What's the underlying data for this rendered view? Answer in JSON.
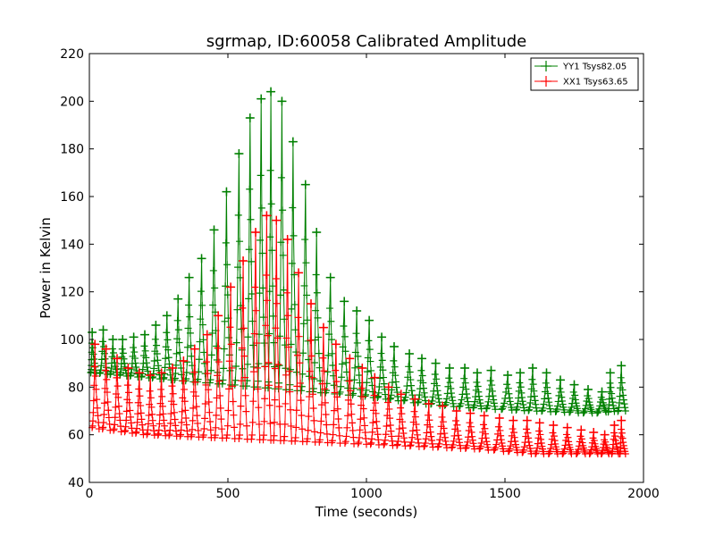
{
  "chart_data": {
    "type": "line",
    "title": "sgrmap, ID:60058 Calibrated Amplitude",
    "xlabel": "Time (seconds)",
    "ylabel": "Power in Kelvin",
    "xlim": [
      0,
      2000
    ],
    "ylim": [
      40,
      220
    ],
    "xticks": [
      "0",
      "500",
      "1000",
      "1500",
      "2000"
    ],
    "yticks": [
      "40",
      "60",
      "80",
      "100",
      "120",
      "140",
      "160",
      "180",
      "200",
      "220"
    ],
    "grid": false,
    "legend_position": "top-right",
    "marker": "+",
    "series": [
      {
        "name": "YY1 Tsys82.05",
        "color": "#008000",
        "peaks": [
          {
            "x": 10,
            "y": 103
          },
          {
            "x": 50,
            "y": 104
          },
          {
            "x": 85,
            "y": 100
          },
          {
            "x": 120,
            "y": 100
          },
          {
            "x": 160,
            "y": 101
          },
          {
            "x": 200,
            "y": 102
          },
          {
            "x": 240,
            "y": 106
          },
          {
            "x": 280,
            "y": 110
          },
          {
            "x": 320,
            "y": 117
          },
          {
            "x": 360,
            "y": 126
          },
          {
            "x": 405,
            "y": 134
          },
          {
            "x": 450,
            "y": 146
          },
          {
            "x": 495,
            "y": 162
          },
          {
            "x": 540,
            "y": 178
          },
          {
            "x": 580,
            "y": 193
          },
          {
            "x": 620,
            "y": 201
          },
          {
            "x": 655,
            "y": 204
          },
          {
            "x": 695,
            "y": 200
          },
          {
            "x": 735,
            "y": 183
          },
          {
            "x": 780,
            "y": 165
          },
          {
            "x": 820,
            "y": 145
          },
          {
            "x": 870,
            "y": 126
          },
          {
            "x": 920,
            "y": 116
          },
          {
            "x": 965,
            "y": 112
          },
          {
            "x": 1010,
            "y": 108
          },
          {
            "x": 1055,
            "y": 101
          },
          {
            "x": 1100,
            "y": 97
          },
          {
            "x": 1155,
            "y": 94
          },
          {
            "x": 1200,
            "y": 92
          },
          {
            "x": 1250,
            "y": 90
          },
          {
            "x": 1300,
            "y": 88
          },
          {
            "x": 1355,
            "y": 88
          },
          {
            "x": 1400,
            "y": 86
          },
          {
            "x": 1450,
            "y": 87
          },
          {
            "x": 1510,
            "y": 85
          },
          {
            "x": 1555,
            "y": 86
          },
          {
            "x": 1600,
            "y": 88
          },
          {
            "x": 1650,
            "y": 86
          },
          {
            "x": 1700,
            "y": 83
          },
          {
            "x": 1750,
            "y": 81
          },
          {
            "x": 1800,
            "y": 79
          },
          {
            "x": 1850,
            "y": 78
          },
          {
            "x": 1880,
            "y": 86
          },
          {
            "x": 1920,
            "y": 89
          }
        ],
        "baseline": [
          {
            "x": 0,
            "y": 86
          },
          {
            "x": 200,
            "y": 84
          },
          {
            "x": 400,
            "y": 82
          },
          {
            "x": 600,
            "y": 80
          },
          {
            "x": 800,
            "y": 78
          },
          {
            "x": 1000,
            "y": 76
          },
          {
            "x": 1200,
            "y": 73
          },
          {
            "x": 1400,
            "y": 71
          },
          {
            "x": 1600,
            "y": 70
          },
          {
            "x": 1800,
            "y": 69
          },
          {
            "x": 1920,
            "y": 70
          }
        ]
      },
      {
        "name": "XX1 Tsys63.65",
        "color": "#ff0000",
        "peaks": [
          {
            "x": 20,
            "y": 98
          },
          {
            "x": 60,
            "y": 96
          },
          {
            "x": 100,
            "y": 92
          },
          {
            "x": 140,
            "y": 88
          },
          {
            "x": 180,
            "y": 86
          },
          {
            "x": 220,
            "y": 85
          },
          {
            "x": 260,
            "y": 86
          },
          {
            "x": 300,
            "y": 88
          },
          {
            "x": 340,
            "y": 91
          },
          {
            "x": 380,
            "y": 96
          },
          {
            "x": 425,
            "y": 102
          },
          {
            "x": 465,
            "y": 110
          },
          {
            "x": 510,
            "y": 122
          },
          {
            "x": 555,
            "y": 133
          },
          {
            "x": 600,
            "y": 145
          },
          {
            "x": 640,
            "y": 152
          },
          {
            "x": 675,
            "y": 150
          },
          {
            "x": 715,
            "y": 142
          },
          {
            "x": 755,
            "y": 128
          },
          {
            "x": 800,
            "y": 115
          },
          {
            "x": 845,
            "y": 105
          },
          {
            "x": 890,
            "y": 98
          },
          {
            "x": 940,
            "y": 92
          },
          {
            "x": 985,
            "y": 88
          },
          {
            "x": 1030,
            "y": 84
          },
          {
            "x": 1080,
            "y": 80
          },
          {
            "x": 1125,
            "y": 77
          },
          {
            "x": 1175,
            "y": 75
          },
          {
            "x": 1225,
            "y": 73
          },
          {
            "x": 1275,
            "y": 72
          },
          {
            "x": 1325,
            "y": 70
          },
          {
            "x": 1375,
            "y": 69
          },
          {
            "x": 1425,
            "y": 68
          },
          {
            "x": 1480,
            "y": 67
          },
          {
            "x": 1530,
            "y": 66
          },
          {
            "x": 1580,
            "y": 66
          },
          {
            "x": 1625,
            "y": 65
          },
          {
            "x": 1675,
            "y": 64
          },
          {
            "x": 1725,
            "y": 63
          },
          {
            "x": 1775,
            "y": 62
          },
          {
            "x": 1820,
            "y": 61
          },
          {
            "x": 1860,
            "y": 60
          },
          {
            "x": 1895,
            "y": 64
          },
          {
            "x": 1920,
            "y": 66
          }
        ],
        "baseline": [
          {
            "x": 0,
            "y": 63
          },
          {
            "x": 200,
            "y": 60
          },
          {
            "x": 400,
            "y": 59
          },
          {
            "x": 600,
            "y": 58
          },
          {
            "x": 800,
            "y": 57
          },
          {
            "x": 1000,
            "y": 56
          },
          {
            "x": 1200,
            "y": 55
          },
          {
            "x": 1400,
            "y": 54
          },
          {
            "x": 1600,
            "y": 52
          },
          {
            "x": 1800,
            "y": 52
          },
          {
            "x": 1920,
            "y": 52
          }
        ]
      }
    ]
  }
}
